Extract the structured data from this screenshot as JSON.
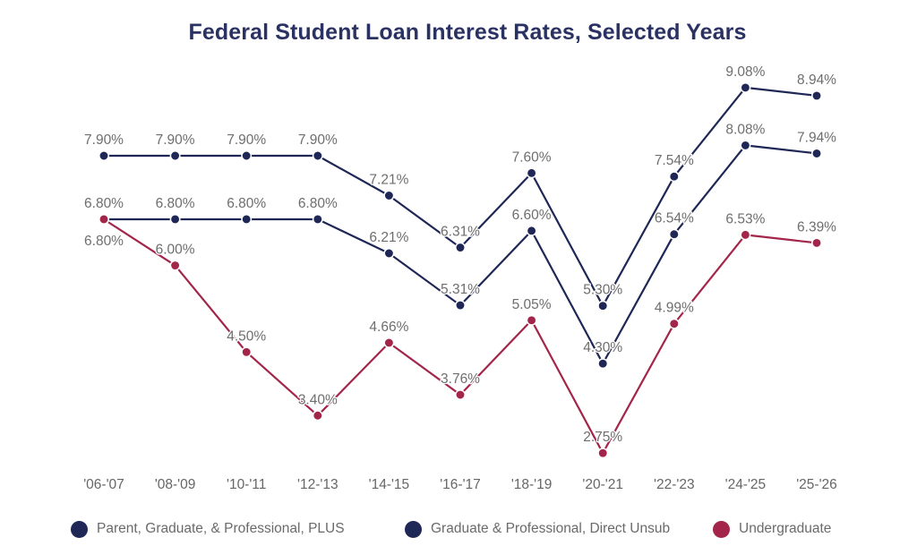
{
  "chart_data": {
    "type": "line",
    "title": "Federal Student Loan Interest Rates, Selected Years",
    "xlabel": "",
    "ylabel": "",
    "ylim": [
      2.5,
      9.5
    ],
    "grid": false,
    "legend_position": "bottom",
    "categories": [
      "'06-'07",
      "'08-'09",
      "'10-'11",
      "'12-'13",
      "'14-'15",
      "'16-'17",
      "'18-'19",
      "'20-'21",
      "'22-'23",
      "'24-'25",
      "'25-'26"
    ],
    "series": [
      {
        "name": "Parent, Graduate, & Professional, PLUS",
        "color": "#1e2756",
        "values": [
          7.9,
          7.9,
          7.9,
          7.9,
          7.21,
          6.31,
          7.6,
          5.3,
          7.54,
          9.08,
          8.94
        ],
        "labels": [
          "7.90%",
          "7.90%",
          "7.90%",
          "7.90%",
          "7.21%",
          "6.31%",
          "7.60%",
          "5.30%",
          "7.54%",
          "9.08%",
          "8.94%"
        ],
        "label_below": []
      },
      {
        "name": "Graduate & Professional, Direct Unsub",
        "color": "#1e2756",
        "values": [
          6.8,
          6.8,
          6.8,
          6.8,
          6.21,
          5.31,
          6.6,
          4.3,
          6.54,
          8.08,
          7.94
        ],
        "labels": [
          "6.80%",
          "6.80%",
          "6.80%",
          "6.80%",
          "6.21%",
          "5.31%",
          "6.60%",
          "4.30%",
          "6.54%",
          "8.08%",
          "7.94%"
        ],
        "label_below": []
      },
      {
        "name": "Undergraduate",
        "color": "#a3264a",
        "values": [
          6.8,
          6.0,
          4.5,
          3.4,
          4.66,
          3.76,
          5.05,
          2.75,
          4.99,
          6.53,
          6.39
        ],
        "labels": [
          "6.80%",
          "6.00%",
          "4.50%",
          "3.40%",
          "4.66%",
          "3.76%",
          "5.05%",
          "2.75%",
          "4.99%",
          "6.53%",
          "6.39%"
        ],
        "label_below": [
          0
        ]
      }
    ]
  }
}
